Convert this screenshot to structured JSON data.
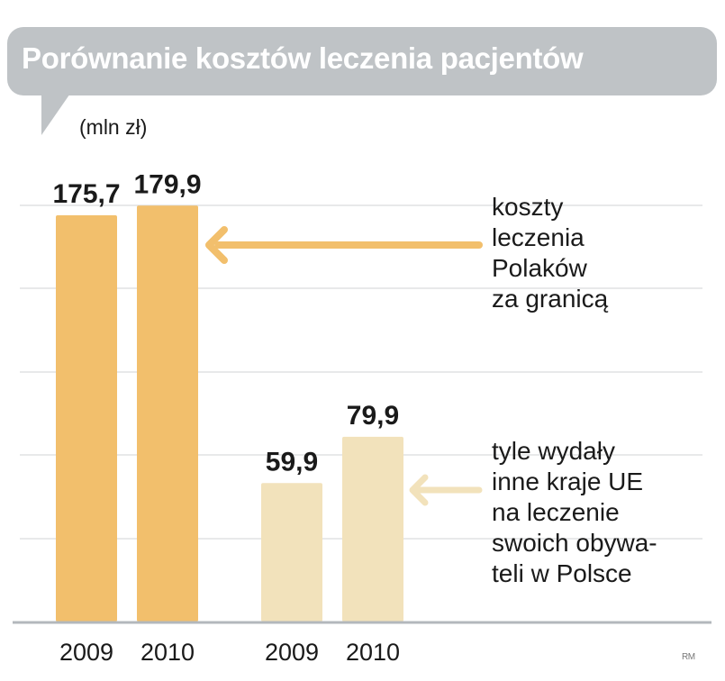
{
  "title": "Porównanie kosztów leczenia pacjentów",
  "unit": "(mln zł)",
  "annotations": [
    {
      "lines": [
        "koszty",
        "leczenia",
        "Polaków",
        "za granicą"
      ],
      "points_to_group": 0
    },
    {
      "lines": [
        "tyle wydały",
        "inne kraje UE",
        "na leczenie",
        "swoich obywa-",
        "teli w Polsce"
      ],
      "points_to_group": 1
    }
  ],
  "credit": "RM",
  "colors": {
    "group1_bar": "#f2bf6c",
    "group2_bar": "#f2e2bb",
    "arrow1": "#f2bf6c",
    "arrow2": "#f2e2bb",
    "title_bg": "#bfc3c6",
    "grid": "#d9dcde",
    "baseline": "#b3b8bc"
  },
  "chart_data": {
    "type": "bar",
    "ylim": [
      0,
      180
    ],
    "grid": true,
    "groups": [
      {
        "name": "koszty leczenia Polaków za granicą",
        "categories": [
          "2009",
          "2010"
        ],
        "values": [
          175.7,
          179.9
        ],
        "labels": [
          "175,7",
          "179,9"
        ]
      },
      {
        "name": "tyle wydały inne kraje UE na leczenie swoich obywateli w Polsce",
        "categories": [
          "2009",
          "2010"
        ],
        "values": [
          59.9,
          79.9
        ],
        "labels": [
          "59,9",
          "79,9"
        ]
      }
    ]
  }
}
